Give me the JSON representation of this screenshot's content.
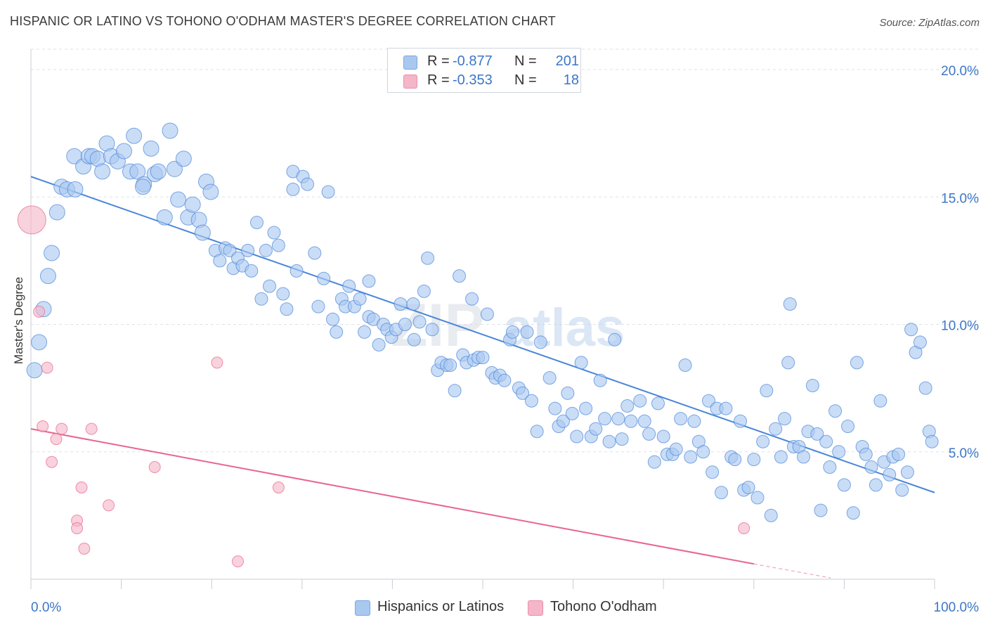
{
  "title": "HISPANIC OR LATINO VS TOHONO O'ODHAM MASTER'S DEGREE CORRELATION CHART",
  "source": "Source: ZipAtlas.com",
  "watermark": {
    "zip": "ZIP",
    "atlas": "atlas"
  },
  "legend": {
    "rows": [
      {
        "r_label": "R =",
        "r_value": "-0.877",
        "n_label": "N =",
        "n_value": "201",
        "color": "#a9c8f0"
      },
      {
        "r_label": "R =",
        "r_value": "-0.353",
        "n_label": "N =",
        "n_value": "18",
        "color": "#f4b6c8"
      }
    ]
  },
  "bottom_legend": [
    {
      "label": "Hispanics or Latinos",
      "color": "#a9c8f0"
    },
    {
      "label": "Tohono O'odham",
      "color": "#f4b6c8"
    }
  ],
  "chart_data": {
    "type": "scatter",
    "title": "HISPANIC OR LATINO VS TOHONO O'ODHAM MASTER'S DEGREE CORRELATION CHART",
    "xlabel": "",
    "ylabel": "Master's Degree",
    "xlim": [
      0,
      100
    ],
    "ylim": [
      0,
      20.8
    ],
    "x_tick_labels": [
      "0.0%",
      "100.0%"
    ],
    "y_ticks": [
      5,
      10,
      15,
      20
    ],
    "y_tick_labels": [
      "5.0%",
      "10.0%",
      "15.0%",
      "20.0%"
    ],
    "grid": "horizontal dashed",
    "legend_position": "top-center",
    "series": [
      {
        "name": "Hispanics or Latinos",
        "color": "#4a86d8",
        "fill": "#a9c8f0",
        "trend": {
          "x": [
            0,
            100
          ],
          "y": [
            15.8,
            3.4
          ]
        },
        "points": [
          [
            0.4,
            8.2
          ],
          [
            0.9,
            9.3
          ],
          [
            1.4,
            10.6
          ],
          [
            1.9,
            11.9
          ],
          [
            2.3,
            12.8
          ],
          [
            2.9,
            14.4
          ],
          [
            3.4,
            15.4
          ],
          [
            4.0,
            15.3
          ],
          [
            4.9,
            15.3
          ],
          [
            4.8,
            16.6
          ],
          [
            5.8,
            16.2
          ],
          [
            6.4,
            16.6
          ],
          [
            6.8,
            16.6
          ],
          [
            7.4,
            16.5
          ],
          [
            7.9,
            16.0
          ],
          [
            8.4,
            17.1
          ],
          [
            8.9,
            16.6
          ],
          [
            9.6,
            16.4
          ],
          [
            10.3,
            16.8
          ],
          [
            11.0,
            16.0
          ],
          [
            11.4,
            17.4
          ],
          [
            11.8,
            16.0
          ],
          [
            12.5,
            15.5
          ],
          [
            12.4,
            15.4
          ],
          [
            13.3,
            16.9
          ],
          [
            13.7,
            15.9
          ],
          [
            14.1,
            16.0
          ],
          [
            14.8,
            14.2
          ],
          [
            15.4,
            17.6
          ],
          [
            15.9,
            16.1
          ],
          [
            16.3,
            14.9
          ],
          [
            16.9,
            16.5
          ],
          [
            17.4,
            14.2
          ],
          [
            17.9,
            14.7
          ],
          [
            18.6,
            14.1
          ],
          [
            19.0,
            13.6
          ],
          [
            19.4,
            15.6
          ],
          [
            19.9,
            15.2
          ],
          [
            20.4,
            12.9
          ],
          [
            20.9,
            12.5
          ],
          [
            21.5,
            13.0
          ],
          [
            22.0,
            12.9
          ],
          [
            22.4,
            12.2
          ],
          [
            22.9,
            12.6
          ],
          [
            23.4,
            12.3
          ],
          [
            24.0,
            12.9
          ],
          [
            24.4,
            12.1
          ],
          [
            25.0,
            14.0
          ],
          [
            25.5,
            11.0
          ],
          [
            26.0,
            12.9
          ],
          [
            26.4,
            11.5
          ],
          [
            26.9,
            13.6
          ],
          [
            27.4,
            13.1
          ],
          [
            27.9,
            11.2
          ],
          [
            28.3,
            10.6
          ],
          [
            29.4,
            12.1
          ],
          [
            29.0,
            15.3
          ],
          [
            29.0,
            16.0
          ],
          [
            30.1,
            15.8
          ],
          [
            30.6,
            15.5
          ],
          [
            31.4,
            12.8
          ],
          [
            31.8,
            10.7
          ],
          [
            32.4,
            11.8
          ],
          [
            32.9,
            15.2
          ],
          [
            33.4,
            10.2
          ],
          [
            33.8,
            9.7
          ],
          [
            34.4,
            11.0
          ],
          [
            34.8,
            10.7
          ],
          [
            35.2,
            11.5
          ],
          [
            35.8,
            10.7
          ],
          [
            36.4,
            11.0
          ],
          [
            36.9,
            9.7
          ],
          [
            37.4,
            10.3
          ],
          [
            37.4,
            11.7
          ],
          [
            37.9,
            10.2
          ],
          [
            38.5,
            9.2
          ],
          [
            39.0,
            10.0
          ],
          [
            39.4,
            9.8
          ],
          [
            39.9,
            9.5
          ],
          [
            40.4,
            9.8
          ],
          [
            40.9,
            10.8
          ],
          [
            41.4,
            10.0
          ],
          [
            42.3,
            10.8
          ],
          [
            42.4,
            9.4
          ],
          [
            43.0,
            10.1
          ],
          [
            43.5,
            11.3
          ],
          [
            43.9,
            12.6
          ],
          [
            44.4,
            9.8
          ],
          [
            45.0,
            8.2
          ],
          [
            45.4,
            8.5
          ],
          [
            46.0,
            8.4
          ],
          [
            46.4,
            8.4
          ],
          [
            46.9,
            7.4
          ],
          [
            47.4,
            11.9
          ],
          [
            47.8,
            8.8
          ],
          [
            48.2,
            8.5
          ],
          [
            48.8,
            11.0
          ],
          [
            49.0,
            8.6
          ],
          [
            49.5,
            8.7
          ],
          [
            50.0,
            8.7
          ],
          [
            50.5,
            10.4
          ],
          [
            51.0,
            8.1
          ],
          [
            51.4,
            7.9
          ],
          [
            51.9,
            8.0
          ],
          [
            52.4,
            7.8
          ],
          [
            53.0,
            9.4
          ],
          [
            53.3,
            9.7
          ],
          [
            54.0,
            7.5
          ],
          [
            54.4,
            7.3
          ],
          [
            54.9,
            9.7
          ],
          [
            55.4,
            7.0
          ],
          [
            56.0,
            5.8
          ],
          [
            56.4,
            9.3
          ],
          [
            57.4,
            7.9
          ],
          [
            58.0,
            6.7
          ],
          [
            58.4,
            6.0
          ],
          [
            58.9,
            6.2
          ],
          [
            59.4,
            7.3
          ],
          [
            59.9,
            6.5
          ],
          [
            60.4,
            5.6
          ],
          [
            60.9,
            8.5
          ],
          [
            61.4,
            6.7
          ],
          [
            62.0,
            5.6
          ],
          [
            62.5,
            5.9
          ],
          [
            63.0,
            7.8
          ],
          [
            63.5,
            6.3
          ],
          [
            64.0,
            5.4
          ],
          [
            64.6,
            9.4
          ],
          [
            65.0,
            6.3
          ],
          [
            65.4,
            5.5
          ],
          [
            66.0,
            6.8
          ],
          [
            66.4,
            6.2
          ],
          [
            67.4,
            7.0
          ],
          [
            67.9,
            6.2
          ],
          [
            68.4,
            5.7
          ],
          [
            69.0,
            4.6
          ],
          [
            69.4,
            6.9
          ],
          [
            70.0,
            5.6
          ],
          [
            70.4,
            4.9
          ],
          [
            71.0,
            4.9
          ],
          [
            71.4,
            5.1
          ],
          [
            71.9,
            6.3
          ],
          [
            72.4,
            8.4
          ],
          [
            73.0,
            4.8
          ],
          [
            73.4,
            6.2
          ],
          [
            73.9,
            5.4
          ],
          [
            74.4,
            5.0
          ],
          [
            75.0,
            7.0
          ],
          [
            75.4,
            4.2
          ],
          [
            75.9,
            6.7
          ],
          [
            76.4,
            3.4
          ],
          [
            76.9,
            6.7
          ],
          [
            77.5,
            4.8
          ],
          [
            77.9,
            4.7
          ],
          [
            78.5,
            6.2
          ],
          [
            78.9,
            3.5
          ],
          [
            79.4,
            3.6
          ],
          [
            80.0,
            4.7
          ],
          [
            80.4,
            3.2
          ],
          [
            81.0,
            5.4
          ],
          [
            81.4,
            7.4
          ],
          [
            81.9,
            2.5
          ],
          [
            82.4,
            5.9
          ],
          [
            83.0,
            4.8
          ],
          [
            83.4,
            6.3
          ],
          [
            83.8,
            8.5
          ],
          [
            84.0,
            10.8
          ],
          [
            84.4,
            5.2
          ],
          [
            85.0,
            5.2
          ],
          [
            85.5,
            4.8
          ],
          [
            86.0,
            5.8
          ],
          [
            86.5,
            7.6
          ],
          [
            87.0,
            5.7
          ],
          [
            87.4,
            2.7
          ],
          [
            88.0,
            5.4
          ],
          [
            88.4,
            4.4
          ],
          [
            89.0,
            6.6
          ],
          [
            89.4,
            5.0
          ],
          [
            90.0,
            3.7
          ],
          [
            90.4,
            6.0
          ],
          [
            91.0,
            2.6
          ],
          [
            91.4,
            8.5
          ],
          [
            92.0,
            5.2
          ],
          [
            92.4,
            4.9
          ],
          [
            93.0,
            4.4
          ],
          [
            93.5,
            3.7
          ],
          [
            94.0,
            7.0
          ],
          [
            94.4,
            4.6
          ],
          [
            95.0,
            4.1
          ],
          [
            95.4,
            4.8
          ],
          [
            96.0,
            4.9
          ],
          [
            96.4,
            3.5
          ],
          [
            97.0,
            4.2
          ],
          [
            97.4,
            9.8
          ],
          [
            97.9,
            8.9
          ],
          [
            98.4,
            9.3
          ],
          [
            99.0,
            7.5
          ],
          [
            99.4,
            5.8
          ],
          [
            99.7,
            5.4
          ]
        ]
      },
      {
        "name": "Tohono O'odham",
        "color": "#e86590",
        "fill": "#f4b6c8",
        "trend": {
          "x": [
            0,
            80
          ],
          "y": [
            5.9,
            0.6
          ]
        },
        "trend_dashed": {
          "x": [
            80,
            88.5
          ],
          "y": [
            0.6,
            0.05
          ]
        },
        "points": [
          [
            0.1,
            14.1
          ],
          [
            0.9,
            10.5
          ],
          [
            1.8,
            8.3
          ],
          [
            1.3,
            6.0
          ],
          [
            2.3,
            4.6
          ],
          [
            2.8,
            5.5
          ],
          [
            3.4,
            5.9
          ],
          [
            5.1,
            2.3
          ],
          [
            5.1,
            2.0
          ],
          [
            5.6,
            3.6
          ],
          [
            5.9,
            1.2
          ],
          [
            6.7,
            5.9
          ],
          [
            8.6,
            2.9
          ],
          [
            13.7,
            4.4
          ],
          [
            20.6,
            8.5
          ],
          [
            22.9,
            0.7
          ],
          [
            27.4,
            3.6
          ],
          [
            78.9,
            2.0
          ]
        ]
      }
    ]
  }
}
